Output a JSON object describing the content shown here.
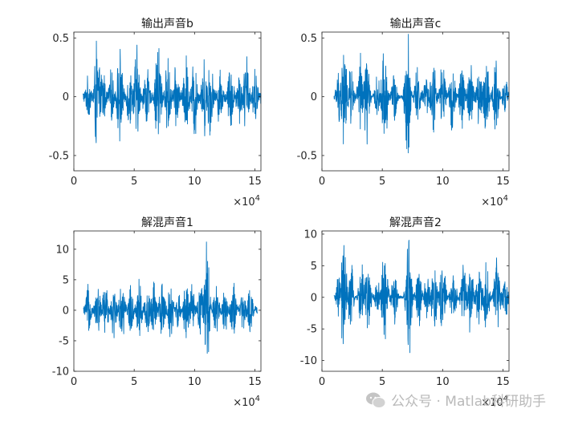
{
  "chart_data": [
    {
      "type": "line",
      "title": "输出声音b",
      "color": "#0072BD",
      "xlim": [
        0,
        155000
      ],
      "ylim": [
        -0.63,
        0.55
      ],
      "xticks": [
        0,
        50000,
        100000,
        150000
      ],
      "xtick_labels": [
        "0",
        "5",
        "10",
        "15"
      ],
      "yticks": [
        -0.5,
        0,
        0.5
      ],
      "ytick_labels": [
        "-0.5",
        "0",
        "0.5"
      ],
      "x_exponent_base": "×10",
      "x_exponent_power": "4",
      "signal": {
        "start": 7500,
        "end": 155000,
        "base_amplitude": 0.06,
        "bursts": [
          [
            12000,
            0.2
          ],
          [
            19000,
            0.55
          ],
          [
            24000,
            0.3
          ],
          [
            31000,
            0.25
          ],
          [
            38000,
            0.48
          ],
          [
            46000,
            0.3
          ],
          [
            52000,
            0.5
          ],
          [
            60000,
            0.34
          ],
          [
            70000,
            0.63
          ],
          [
            78000,
            0.38
          ],
          [
            85000,
            0.32
          ],
          [
            93000,
            0.4
          ],
          [
            100000,
            0.44
          ],
          [
            108000,
            0.36
          ],
          [
            113000,
            0.42
          ],
          [
            121000,
            0.28
          ],
          [
            130000,
            0.36
          ],
          [
            137000,
            0.26
          ],
          [
            143000,
            0.42
          ],
          [
            150000,
            0.27
          ]
        ]
      }
    },
    {
      "type": "line",
      "title": "输出声音c",
      "color": "#0072BD",
      "xlim": [
        0,
        155000
      ],
      "ylim": [
        -0.63,
        0.55
      ],
      "xticks": [
        0,
        50000,
        100000,
        150000
      ],
      "xtick_labels": [
        "0",
        "5",
        "10",
        "15"
      ],
      "yticks": [
        -0.5,
        0,
        0.5
      ],
      "ytick_labels": [
        "-0.5",
        "0",
        "0.5"
      ],
      "x_exponent_base": "×10",
      "x_exponent_power": "4",
      "signal": {
        "start": 10000,
        "end": 155000,
        "base_amplitude": 0.015,
        "bursts": [
          [
            14000,
            0.25
          ],
          [
            18000,
            0.55
          ],
          [
            24000,
            0.3
          ],
          [
            32000,
            0.4
          ],
          [
            37000,
            0.46
          ],
          [
            46000,
            0.2
          ],
          [
            52000,
            0.55
          ],
          [
            60000,
            0.24
          ],
          [
            71000,
            0.6
          ],
          [
            79000,
            0.3
          ],
          [
            86000,
            0.22
          ],
          [
            92000,
            0.4
          ],
          [
            100000,
            0.36
          ],
          [
            108000,
            0.32
          ],
          [
            116000,
            0.34
          ],
          [
            123000,
            0.36
          ],
          [
            130000,
            0.3
          ],
          [
            136000,
            0.38
          ],
          [
            144000,
            0.4
          ],
          [
            152000,
            0.18
          ]
        ]
      }
    },
    {
      "type": "line",
      "title": "解混声音1",
      "color": "#0072BD",
      "xlim": [
        0,
        155000
      ],
      "ylim": [
        -10,
        13
      ],
      "xticks": [
        0,
        50000,
        100000,
        150000
      ],
      "xtick_labels": [
        "0",
        "5",
        "10",
        "15"
      ],
      "yticks": [
        -10,
        -5,
        0,
        5,
        10
      ],
      "ytick_labels": [
        "-10",
        "-5",
        "0",
        "5",
        "10"
      ],
      "x_exponent_base": "×10",
      "x_exponent_power": "4",
      "signal": {
        "start": 8000,
        "end": 152000,
        "base_amplitude": 0.8,
        "bursts": [
          [
            12000,
            4.5
          ],
          [
            20000,
            5
          ],
          [
            26000,
            5.5
          ],
          [
            33000,
            5
          ],
          [
            40000,
            6
          ],
          [
            47000,
            4.5
          ],
          [
            54000,
            6.5
          ],
          [
            61000,
            5
          ],
          [
            66000,
            5.5
          ],
          [
            73000,
            6
          ],
          [
            80000,
            6
          ],
          [
            86000,
            3.5
          ],
          [
            93000,
            5.5
          ],
          [
            98000,
            4.5
          ],
          [
            105000,
            5
          ],
          [
            110000,
            13
          ],
          [
            118000,
            5
          ],
          [
            125000,
            4.5
          ],
          [
            132000,
            5.5
          ],
          [
            140000,
            4
          ],
          [
            146000,
            4.5
          ]
        ]
      }
    },
    {
      "type": "line",
      "title": "解混声音2",
      "color": "#0072BD",
      "xlim": [
        0,
        155000
      ],
      "ylim": [
        -11.7,
        10.5
      ],
      "xticks": [
        0,
        50000,
        100000,
        150000
      ],
      "xtick_labels": [
        "0",
        "5",
        "10",
        "15"
      ],
      "yticks": [
        -10,
        -5,
        0,
        5,
        10
      ],
      "ytick_labels": [
        "-10",
        "-5",
        "0",
        "5",
        "10"
      ],
      "x_exponent_base": "×10",
      "x_exponent_power": "4",
      "signal": {
        "start": 10000,
        "end": 155000,
        "base_amplitude": 0.25,
        "bursts": [
          [
            14000,
            4
          ],
          [
            18000,
            10.5
          ],
          [
            24000,
            6
          ],
          [
            33000,
            6.5
          ],
          [
            38000,
            7
          ],
          [
            46000,
            3
          ],
          [
            52000,
            11
          ],
          [
            60000,
            5
          ],
          [
            72000,
            11.5
          ],
          [
            80000,
            5.5
          ],
          [
            87000,
            4
          ],
          [
            93000,
            7
          ],
          [
            100000,
            7
          ],
          [
            109000,
            5.5
          ],
          [
            117000,
            6
          ],
          [
            123000,
            6.5
          ],
          [
            130000,
            6
          ],
          [
            136000,
            7
          ],
          [
            145000,
            8.5
          ],
          [
            152000,
            4
          ]
        ]
      }
    }
  ],
  "watermark": {
    "text": "公众号 · Matlab科研助手",
    "icon": "wechat-icon"
  }
}
